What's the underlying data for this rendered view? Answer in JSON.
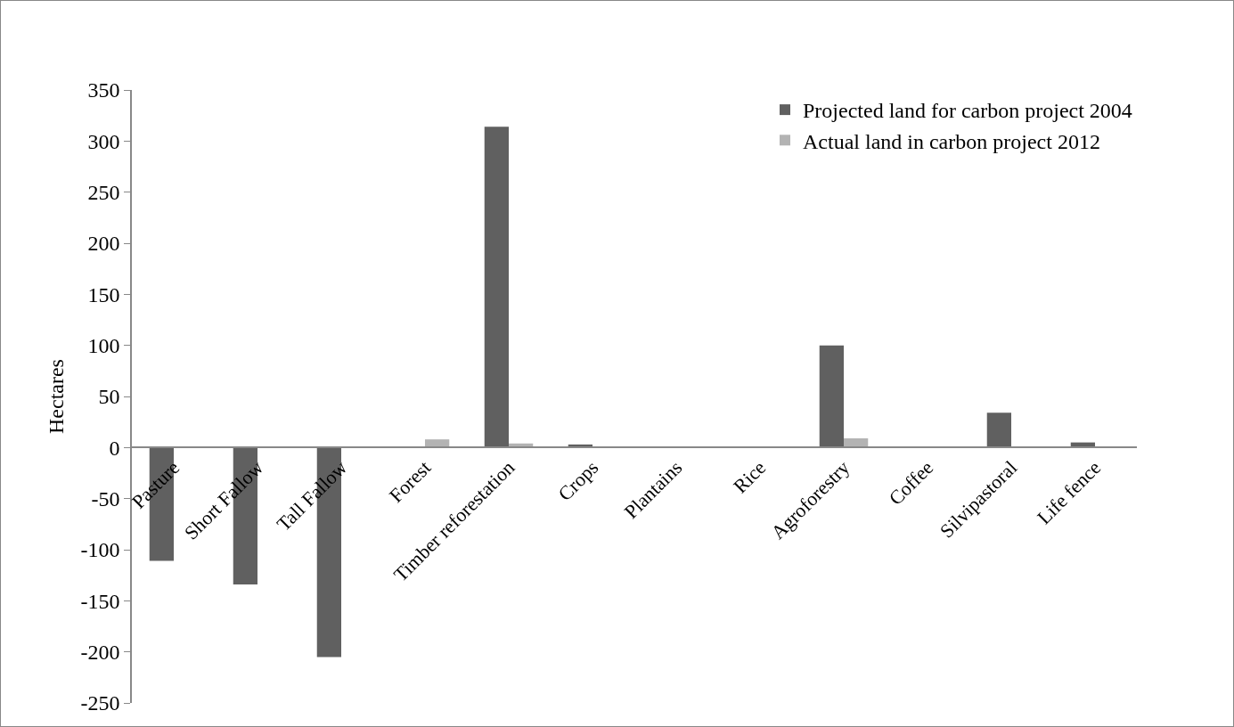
{
  "chart_data": {
    "type": "bar",
    "ylabel": "Hectares",
    "categories": [
      "Pasture",
      "Short Fallow",
      "Tall Fallow",
      "Forest",
      "Timber reforestation",
      "Crops",
      "Plantains",
      "Rice",
      "Agroforestry",
      "Coffee",
      "Silvipastoral",
      "Life fence"
    ],
    "series": [
      {
        "name": "Projected land for carbon project 2004",
        "color": "#606060",
        "values": [
          -111,
          -134,
          -205,
          0,
          314,
          3,
          0,
          null,
          100,
          0,
          34,
          5
        ]
      },
      {
        "name": "Actual land in carbon project 2012",
        "color": "#b3b3b3",
        "values": [
          0,
          0,
          0,
          8,
          4,
          0,
          0,
          0,
          9,
          0,
          null,
          0
        ]
      }
    ],
    "ylim": [
      -250,
      350
    ],
    "yticks": [
      -250,
      -200,
      -150,
      -100,
      -50,
      0,
      50,
      100,
      150,
      200,
      250,
      300,
      350
    ],
    "grid": false,
    "legend": "top right"
  }
}
